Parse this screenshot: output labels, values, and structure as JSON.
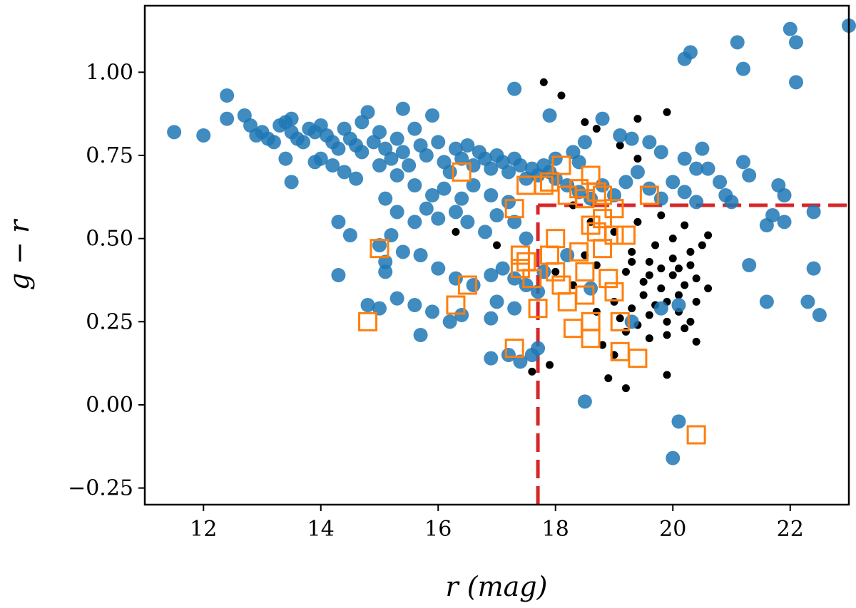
{
  "chart_data": {
    "type": "scatter",
    "title": "",
    "xlabel": "r (mag)",
    "ylabel": "g − r",
    "xlim": [
      11.0,
      23.0
    ],
    "ylim": [
      -0.3,
      1.2
    ],
    "xticks": [
      12,
      14,
      16,
      18,
      20,
      22
    ],
    "xtick_labels": [
      "12",
      "14",
      "16",
      "18",
      "20",
      "22"
    ],
    "yticks": [
      -0.25,
      0.0,
      0.25,
      0.5,
      0.75,
      1.0
    ],
    "ytick_labels": [
      "−0.25",
      "0.00",
      "0.25",
      "0.50",
      "0.75",
      "1.00"
    ],
    "grid": false,
    "colors": {
      "blue": "#1f77b4",
      "orange": "#ff7f0e",
      "black": "#000000",
      "red": "#d62728"
    },
    "reference_lines": [
      {
        "orientation": "vertical",
        "x": 17.7,
        "y_range": [
          -0.3,
          0.6
        ],
        "style": "dashed",
        "color": "#d62728"
      },
      {
        "orientation": "horizontal",
        "y": 0.6,
        "x_range": [
          17.7,
          23.0
        ],
        "style": "dashed",
        "color": "#d62728"
      }
    ],
    "series": [
      {
        "name": "black points",
        "marker": "small-dot",
        "color": "#000000",
        "points": [
          [
            17.8,
            0.97
          ],
          [
            18.1,
            0.93
          ],
          [
            18.5,
            0.85
          ],
          [
            18.7,
            0.83
          ],
          [
            19.4,
            0.86
          ],
          [
            19.9,
            0.88
          ],
          [
            19.1,
            0.78
          ],
          [
            19.4,
            0.74
          ],
          [
            18.6,
            0.55
          ],
          [
            19.0,
            0.52
          ],
          [
            19.3,
            0.46
          ],
          [
            19.6,
            0.43
          ],
          [
            19.8,
            0.41
          ],
          [
            20.0,
            0.39
          ],
          [
            20.2,
            0.36
          ],
          [
            19.5,
            0.33
          ],
          [
            19.7,
            0.3
          ],
          [
            20.1,
            0.28
          ],
          [
            20.3,
            0.25
          ],
          [
            19.2,
            0.22
          ],
          [
            19.6,
            0.2
          ],
          [
            19.9,
            0.21
          ],
          [
            20.4,
            0.19
          ],
          [
            18.8,
            0.18
          ],
          [
            19.0,
            0.15
          ],
          [
            18.9,
            0.08
          ],
          [
            19.2,
            0.05
          ],
          [
            19.9,
            0.09
          ],
          [
            17.6,
            0.1
          ],
          [
            17.9,
            0.12
          ],
          [
            18.3,
            0.6
          ],
          [
            18.5,
            0.45
          ],
          [
            19.4,
            0.55
          ],
          [
            19.8,
            0.57
          ],
          [
            20.2,
            0.54
          ],
          [
            20.5,
            0.48
          ],
          [
            19.7,
            0.48
          ],
          [
            20.0,
            0.44
          ],
          [
            20.3,
            0.42
          ],
          [
            19.2,
            0.4
          ],
          [
            19.5,
            0.37
          ],
          [
            19.8,
            0.35
          ],
          [
            20.1,
            0.33
          ],
          [
            20.4,
            0.31
          ],
          [
            19.0,
            0.31
          ],
          [
            19.3,
            0.29
          ],
          [
            19.6,
            0.27
          ],
          [
            19.9,
            0.25
          ],
          [
            20.2,
            0.23
          ],
          [
            18.7,
            0.28
          ],
          [
            19.1,
            0.26
          ],
          [
            19.4,
            0.24
          ],
          [
            18.3,
            0.36
          ],
          [
            18.0,
            0.4
          ],
          [
            18.7,
            0.42
          ],
          [
            20.6,
            0.51
          ],
          [
            20.4,
            0.38
          ],
          [
            20.6,
            0.35
          ],
          [
            20.0,
            0.5
          ],
          [
            19.9,
            0.31
          ],
          [
            20.3,
            0.46
          ],
          [
            19.6,
            0.39
          ],
          [
            20.1,
            0.41
          ],
          [
            19.3,
            0.43
          ],
          [
            16.3,
            0.52
          ],
          [
            17.0,
            0.48
          ]
        ]
      },
      {
        "name": "blue points",
        "marker": "large-circle",
        "color": "#1f77b4",
        "points": [
          [
            11.5,
            0.82
          ],
          [
            12.0,
            0.81
          ],
          [
            12.4,
            0.93
          ],
          [
            12.4,
            0.86
          ],
          [
            12.7,
            0.87
          ],
          [
            12.8,
            0.84
          ],
          [
            12.9,
            0.81
          ],
          [
            13.0,
            0.82
          ],
          [
            13.1,
            0.8
          ],
          [
            13.2,
            0.79
          ],
          [
            13.3,
            0.84
          ],
          [
            13.4,
            0.85
          ],
          [
            13.5,
            0.86
          ],
          [
            13.5,
            0.82
          ],
          [
            13.6,
            0.8
          ],
          [
            13.7,
            0.79
          ],
          [
            13.8,
            0.83
          ],
          [
            13.9,
            0.82
          ],
          [
            14.0,
            0.84
          ],
          [
            14.1,
            0.81
          ],
          [
            14.2,
            0.79
          ],
          [
            14.3,
            0.77
          ],
          [
            14.4,
            0.83
          ],
          [
            14.5,
            0.8
          ],
          [
            14.6,
            0.78
          ],
          [
            14.7,
            0.85
          ],
          [
            14.7,
            0.76
          ],
          [
            14.8,
            0.88
          ],
          [
            14.9,
            0.79
          ],
          [
            15.0,
            0.82
          ],
          [
            15.1,
            0.77
          ],
          [
            15.2,
            0.74
          ],
          [
            15.3,
            0.8
          ],
          [
            15.4,
            0.89
          ],
          [
            15.4,
            0.76
          ],
          [
            15.5,
            0.72
          ],
          [
            15.6,
            0.83
          ],
          [
            15.7,
            0.78
          ],
          [
            15.8,
            0.75
          ],
          [
            15.9,
            0.87
          ],
          [
            16.0,
            0.79
          ],
          [
            16.1,
            0.73
          ],
          [
            16.2,
            0.7
          ],
          [
            16.3,
            0.77
          ],
          [
            16.4,
            0.74
          ],
          [
            16.5,
            0.78
          ],
          [
            16.6,
            0.72
          ],
          [
            16.7,
            0.76
          ],
          [
            16.8,
            0.74
          ],
          [
            16.9,
            0.71
          ],
          [
            17.0,
            0.75
          ],
          [
            17.1,
            0.73
          ],
          [
            17.2,
            0.7
          ],
          [
            17.3,
            0.74
          ],
          [
            17.4,
            0.72
          ],
          [
            17.5,
            0.68
          ],
          [
            17.6,
            0.71
          ],
          [
            17.7,
            0.69
          ],
          [
            17.8,
            0.72
          ],
          [
            17.9,
            0.7
          ],
          [
            14.0,
            0.74
          ],
          [
            14.2,
            0.72
          ],
          [
            14.4,
            0.7
          ],
          [
            14.6,
            0.68
          ],
          [
            13.5,
            0.67
          ],
          [
            13.4,
            0.74
          ],
          [
            13.9,
            0.73
          ],
          [
            15.0,
            0.72
          ],
          [
            15.3,
            0.69
          ],
          [
            15.6,
            0.66
          ],
          [
            15.9,
            0.63
          ],
          [
            16.1,
            0.65
          ],
          [
            16.4,
            0.62
          ],
          [
            16.6,
            0.66
          ],
          [
            16.9,
            0.63
          ],
          [
            17.2,
            0.61
          ],
          [
            15.1,
            0.62
          ],
          [
            15.3,
            0.58
          ],
          [
            15.6,
            0.55
          ],
          [
            15.2,
            0.51
          ],
          [
            15.8,
            0.59
          ],
          [
            16.0,
            0.56
          ],
          [
            16.3,
            0.58
          ],
          [
            16.5,
            0.55
          ],
          [
            16.8,
            0.52
          ],
          [
            17.0,
            0.57
          ],
          [
            17.3,
            0.55
          ],
          [
            17.5,
            0.5
          ],
          [
            14.3,
            0.55
          ],
          [
            14.5,
            0.51
          ],
          [
            15.0,
            0.48
          ],
          [
            15.4,
            0.46
          ],
          [
            15.7,
            0.45
          ],
          [
            16.0,
            0.41
          ],
          [
            16.3,
            0.38
          ],
          [
            16.6,
            0.36
          ],
          [
            16.9,
            0.39
          ],
          [
            17.1,
            0.41
          ],
          [
            17.3,
            0.38
          ],
          [
            17.5,
            0.36
          ],
          [
            17.7,
            0.34
          ],
          [
            14.3,
            0.39
          ],
          [
            15.1,
            0.43
          ],
          [
            15.1,
            0.4
          ],
          [
            15.3,
            0.32
          ],
          [
            15.0,
            0.29
          ],
          [
            14.8,
            0.3
          ],
          [
            15.6,
            0.3
          ],
          [
            15.9,
            0.28
          ],
          [
            15.7,
            0.21
          ],
          [
            16.2,
            0.25
          ],
          [
            16.4,
            0.27
          ],
          [
            16.9,
            0.26
          ],
          [
            17.0,
            0.31
          ],
          [
            17.3,
            0.29
          ],
          [
            17.2,
            0.15
          ],
          [
            16.9,
            0.14
          ],
          [
            17.4,
            0.13
          ],
          [
            17.6,
            0.15
          ],
          [
            17.7,
            0.17
          ],
          [
            18.0,
            0.68
          ],
          [
            18.2,
            0.66
          ],
          [
            18.4,
            0.64
          ],
          [
            18.6,
            0.62
          ],
          [
            18.8,
            0.66
          ],
          [
            19.0,
            0.63
          ],
          [
            19.2,
            0.67
          ],
          [
            19.4,
            0.7
          ],
          [
            19.6,
            0.65
          ],
          [
            19.8,
            0.62
          ],
          [
            20.0,
            0.67
          ],
          [
            20.2,
            0.64
          ],
          [
            20.4,
            0.61
          ],
          [
            20.6,
            0.71
          ],
          [
            20.8,
            0.67
          ],
          [
            20.9,
            0.63
          ],
          [
            21.0,
            0.61
          ],
          [
            21.2,
            0.73
          ],
          [
            21.3,
            0.69
          ],
          [
            21.6,
            0.54
          ],
          [
            21.7,
            0.57
          ],
          [
            21.8,
            0.66
          ],
          [
            21.9,
            0.55
          ],
          [
            22.4,
            0.58
          ],
          [
            22.4,
            0.41
          ],
          [
            22.3,
            0.31
          ],
          [
            22.5,
            0.27
          ],
          [
            21.6,
            0.31
          ],
          [
            21.3,
            0.42
          ],
          [
            21.9,
            0.63
          ],
          [
            18.3,
            0.76
          ],
          [
            18.5,
            0.79
          ],
          [
            18.8,
            0.86
          ],
          [
            19.1,
            0.81
          ],
          [
            19.3,
            0.8
          ],
          [
            19.6,
            0.79
          ],
          [
            19.8,
            0.76
          ],
          [
            20.2,
            0.74
          ],
          [
            20.4,
            0.71
          ],
          [
            20.5,
            0.77
          ],
          [
            17.3,
            0.95
          ],
          [
            17.9,
            0.87
          ],
          [
            18.0,
            0.74
          ],
          [
            18.4,
            0.73
          ],
          [
            21.2,
            1.01
          ],
          [
            21.1,
            1.09
          ],
          [
            22.0,
            1.13
          ],
          [
            22.1,
            1.09
          ],
          [
            22.1,
            0.97
          ],
          [
            23.0,
            1.14
          ],
          [
            20.2,
            1.04
          ],
          [
            20.3,
            1.06
          ],
          [
            18.5,
            0.01
          ],
          [
            20.1,
            -0.05
          ],
          [
            20.0,
            -0.16
          ],
          [
            19.8,
            0.29
          ],
          [
            20.1,
            0.3
          ],
          [
            17.8,
            0.4
          ],
          [
            18.2,
            0.45
          ],
          [
            18.6,
            0.35
          ],
          [
            19.3,
            0.25
          ]
        ]
      },
      {
        "name": "orange squares",
        "marker": "open-square",
        "color": "#ff7f0e",
        "points": [
          [
            16.4,
            0.7
          ],
          [
            15.0,
            0.47
          ],
          [
            14.8,
            0.25
          ],
          [
            16.3,
            0.3
          ],
          [
            16.5,
            0.36
          ],
          [
            17.3,
            0.59
          ],
          [
            17.3,
            0.17
          ],
          [
            17.5,
            0.66
          ],
          [
            17.8,
            0.66
          ],
          [
            17.9,
            0.67
          ],
          [
            18.1,
            0.72
          ],
          [
            18.2,
            0.63
          ],
          [
            18.4,
            0.65
          ],
          [
            18.5,
            0.62
          ],
          [
            18.6,
            0.69
          ],
          [
            18.7,
            0.64
          ],
          [
            18.8,
            0.63
          ],
          [
            19.0,
            0.59
          ],
          [
            19.6,
            0.63
          ],
          [
            17.4,
            0.45
          ],
          [
            17.4,
            0.41
          ],
          [
            17.5,
            0.43
          ],
          [
            17.6,
            0.38
          ],
          [
            17.7,
            0.29
          ],
          [
            17.9,
            0.45
          ],
          [
            18.0,
            0.5
          ],
          [
            18.0,
            0.4
          ],
          [
            18.1,
            0.36
          ],
          [
            18.2,
            0.31
          ],
          [
            18.3,
            0.23
          ],
          [
            18.4,
            0.46
          ],
          [
            18.5,
            0.4
          ],
          [
            18.5,
            0.33
          ],
          [
            18.6,
            0.25
          ],
          [
            18.6,
            0.2
          ],
          [
            18.7,
            0.52
          ],
          [
            18.8,
            0.47
          ],
          [
            18.9,
            0.38
          ],
          [
            19.0,
            0.51
          ],
          [
            19.0,
            0.34
          ],
          [
            19.1,
            0.25
          ],
          [
            19.2,
            0.51
          ],
          [
            19.1,
            0.16
          ],
          [
            19.4,
            0.14
          ],
          [
            18.6,
            0.54
          ],
          [
            18.8,
            0.56
          ],
          [
            20.4,
            -0.09
          ]
        ]
      }
    ]
  }
}
